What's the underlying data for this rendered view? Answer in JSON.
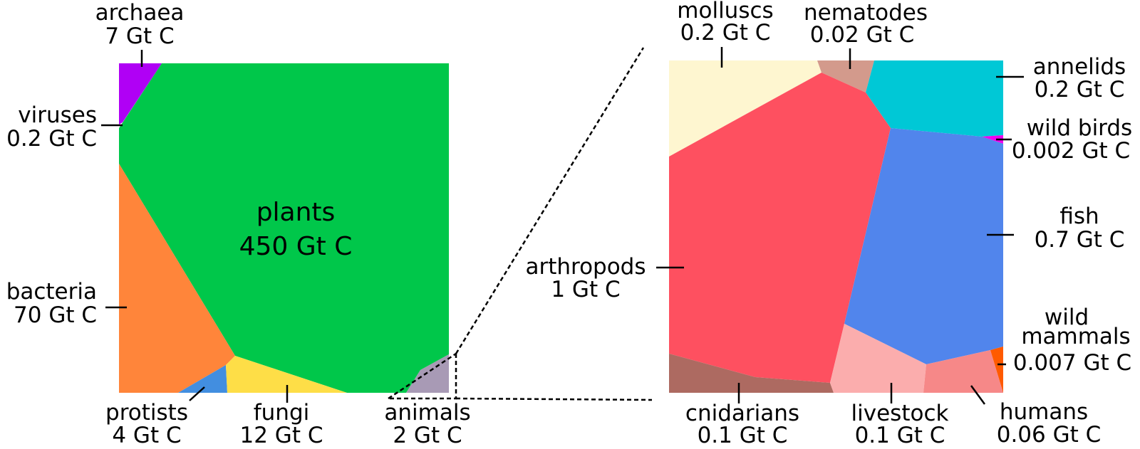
{
  "colors": {
    "plants": "#00c74a",
    "archaea": "#b000f5",
    "bacteria": "#ff853a",
    "protists": "#428ee0",
    "fungi": "#fede47",
    "animals": "#a89ab5",
    "molluscs": "#fef6d0",
    "nematodes": "#d39a8c",
    "annelids": "#00c8d6",
    "arthropods": "#fe5060",
    "fish": "#5185ec",
    "wild_birds": "#f000f0",
    "wild_mammals": "#ff5a00",
    "cnidarians": "#ad6a61",
    "livestock": "#fbadad",
    "humans": "#f68888"
  },
  "overall": {
    "plants": {
      "name": "plants",
      "value": "450 Gt C"
    },
    "archaea": {
      "name": "archaea",
      "value": "7 Gt C"
    },
    "viruses": {
      "name": "viruses",
      "value": "0.2 Gt C"
    },
    "bacteria": {
      "name": "bacteria",
      "value": "70 Gt C"
    },
    "protists": {
      "name": "protists",
      "value": "4 Gt C"
    },
    "fungi": {
      "name": "fungi",
      "value": "12 Gt C"
    },
    "animals": {
      "name": "animals",
      "value": "2 Gt C"
    }
  },
  "animals": {
    "molluscs": {
      "name": "molluscs",
      "value": "0.2 Gt C"
    },
    "nematodes": {
      "name": "nematodes",
      "value": "0.02 Gt C"
    },
    "annelids": {
      "name": "annelids",
      "value": "0.2 Gt C"
    },
    "wild_birds": {
      "name": "wild birds",
      "value": "0.002 Gt C"
    },
    "fish": {
      "name": "fish",
      "value": "0.7 Gt C"
    },
    "arthropods": {
      "name": "arthropods",
      "value": "1 Gt C"
    },
    "wild_mammals": {
      "name_line1": "wild",
      "name_line2": "mammals",
      "value": "0.007 Gt C"
    },
    "cnidarians": {
      "name": "cnidarians",
      "value": "0.1 Gt C"
    },
    "livestock": {
      "name": "livestock",
      "value": "0.1 Gt C"
    },
    "humans": {
      "name": "humans",
      "value": "0.06 Gt C"
    }
  }
}
